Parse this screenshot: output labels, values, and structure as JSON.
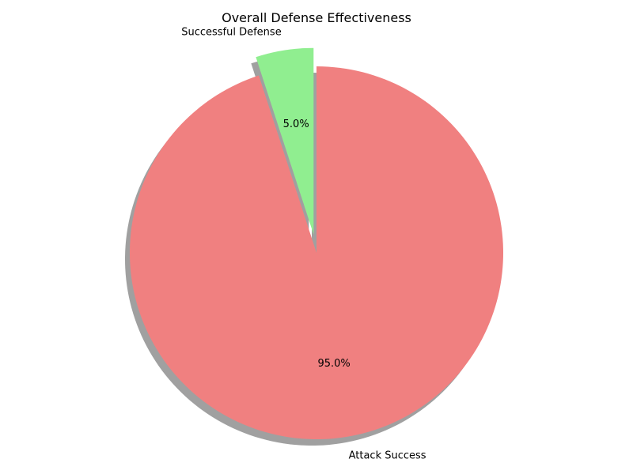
{
  "chart_data": {
    "type": "pie",
    "title": "Overall Defense Effectiveness",
    "slices": [
      {
        "label": "Successful Defense",
        "value": 5.0,
        "percent_label": "5.0%",
        "color": "#90ee90",
        "exploded": true
      },
      {
        "label": "Attack Success",
        "value": 95.0,
        "percent_label": "95.0%",
        "color": "#f08080",
        "exploded": false
      }
    ],
    "start_angle_deg": 90,
    "direction": "counterclockwise",
    "shadow": true,
    "shadow_color": "#808080"
  }
}
